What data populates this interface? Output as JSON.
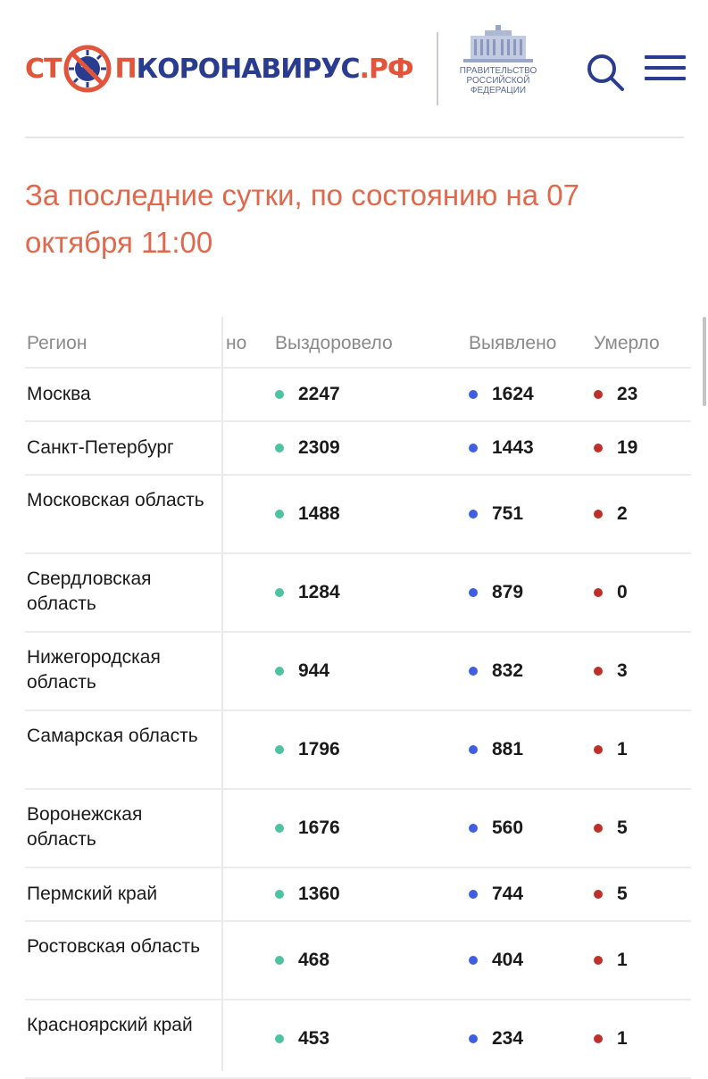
{
  "header": {
    "logo": {
      "part1": "СТ",
      "part2": "П",
      "part3": "КОРОНАВИРУС",
      "part4": ".РФ"
    },
    "gov_label": "ПРАВИТЕЛЬСТВО\nРОССИЙСКОЙ\nФЕДЕРАЦИИ",
    "icons": {
      "search": "search-icon",
      "menu": "menu-icon"
    }
  },
  "title": "За последние сутки, по состоянию на 07 октября 11:00",
  "table": {
    "headers": {
      "region": "Регион",
      "hidden": "но",
      "recovered": "Выздоровело",
      "detected": "Выявлено",
      "died": "Умерло"
    },
    "rows": [
      {
        "region": "Москва",
        "recovered": "2247",
        "detected": "1624",
        "died": "23"
      },
      {
        "region": "Санкт-Петербург",
        "recovered": "2309",
        "detected": "1443",
        "died": "19"
      },
      {
        "region": "Московская область",
        "recovered": "1488",
        "detected": "751",
        "died": "2"
      },
      {
        "region": "Свердловская область",
        "recovered": "1284",
        "detected": "879",
        "died": "0"
      },
      {
        "region": "Нижегородская область",
        "recovered": "944",
        "detected": "832",
        "died": "3"
      },
      {
        "region": "Самарская область",
        "recovered": "1796",
        "detected": "881",
        "died": "1"
      },
      {
        "region": "Воронежская область",
        "recovered": "1676",
        "detected": "560",
        "died": "5"
      },
      {
        "region": "Пермский край",
        "recovered": "1360",
        "detected": "744",
        "died": "5"
      },
      {
        "region": "Ростовская область",
        "recovered": "468",
        "detected": "404",
        "died": "1"
      },
      {
        "region": "Красноярский край",
        "recovered": "453",
        "detected": "234",
        "died": "1"
      }
    ]
  },
  "colors": {
    "accent_red": "#e2553a",
    "title": "#e0694d",
    "brand_blue": "#2a3c8f",
    "recovered_dot": "#4fc3a1",
    "detected_dot": "#3f5fe0",
    "died_dot": "#c0302a"
  }
}
